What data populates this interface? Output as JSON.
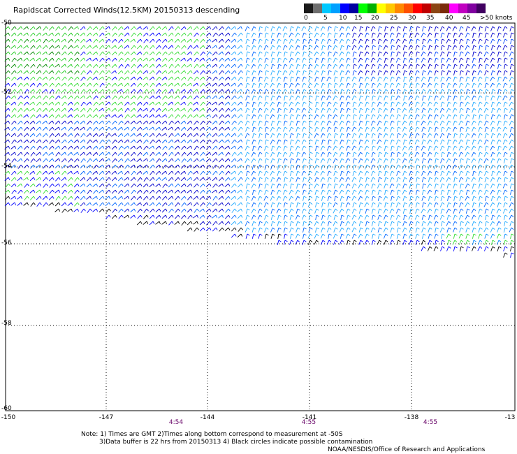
{
  "title": "Rapidscat Corrected Winds(12.5KM) 20150313 descending",
  "legend": {
    "colors": [
      "#1a1a1a",
      "#6e6e6e",
      "#00c8ff",
      "#00a0ff",
      "#0000ff",
      "#0000a0",
      "#00ff00",
      "#00b000",
      "#ffff00",
      "#ffc800",
      "#ff8800",
      "#ff5000",
      "#ff0000",
      "#c00000",
      "#8b4513",
      "#7a2a0a",
      "#ff00ff",
      "#c000c0",
      "#8000a0",
      "#400060"
    ],
    "labels": [
      "0",
      "5",
      "10",
      "15",
      "20",
      "25",
      "30",
      "35",
      "40",
      "45",
      ">50 knots"
    ]
  },
  "axes": {
    "x_ticks": [
      "-150",
      "-147",
      "-144",
      "-141",
      "-138",
      "-13"
    ],
    "y_ticks": [
      "-50",
      "-52",
      "-54",
      "-56",
      "-58",
      "-60"
    ]
  },
  "times": [
    "4:54",
    "4:55",
    "4:55"
  ],
  "notes": [
    "Note: 1) Times are GMT 2)Times along bottom correspond to measurement at -50S",
    "3)Data buffer is 22 hrs from 20150313 4) Black circles indicate possible contamination"
  ],
  "credit": "NOAA/NESDIS/Office of Research and Applications"
}
